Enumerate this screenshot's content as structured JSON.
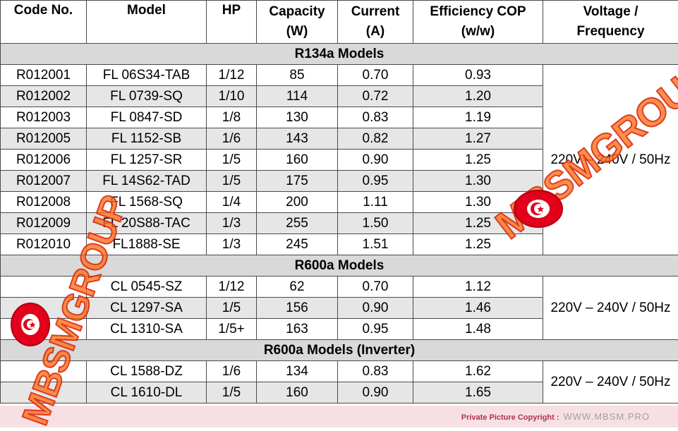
{
  "headers": {
    "code": "Code No.",
    "model": "Model",
    "hp": "HP",
    "capacity_l1": "Capacity",
    "capacity_l2": "(W)",
    "current_l1": "Current",
    "current_l2": "(A)",
    "cop_l1": "Efficiency COP",
    "cop_l2": "(w/w)",
    "voltage_l1": "Voltage /",
    "voltage_l2": "Frequency"
  },
  "sections": [
    {
      "title": "R134a Models",
      "voltage": "220V – 240V / 50Hz",
      "rows": [
        {
          "code": "R012001",
          "model": "FL 06S34-TAB",
          "hp": "1/12",
          "capacity": "85",
          "current": "0.70",
          "cop": "0.93"
        },
        {
          "code": "R012002",
          "model": "FL 0739-SQ",
          "hp": "1/10",
          "capacity": "114",
          "current": "0.72",
          "cop": "1.20"
        },
        {
          "code": "R012003",
          "model": "FL 0847-SD",
          "hp": "1/8",
          "capacity": "130",
          "current": "0.83",
          "cop": "1.19"
        },
        {
          "code": "R012005",
          "model": "FL 1152-SB",
          "hp": "1/6",
          "capacity": "143",
          "current": "0.82",
          "cop": "1.27"
        },
        {
          "code": "R012006",
          "model": "FL 1257-SR",
          "hp": "1/5",
          "capacity": "160",
          "current": "0.90",
          "cop": "1.25"
        },
        {
          "code": "R012007",
          "model": "FL 14S62-TAD",
          "hp": "1/5",
          "capacity": "175",
          "current": "0.95",
          "cop": "1.30"
        },
        {
          "code": "R012008",
          "model": "FL 1568-SQ",
          "hp": "1/4",
          "capacity": "200",
          "current": "1.11",
          "cop": "1.30"
        },
        {
          "code": "R012009",
          "model": "FL 20S88-TAC",
          "hp": "1/3",
          "capacity": "255",
          "current": "1.50",
          "cop": "1.25"
        },
        {
          "code": "R012010",
          "model": "FL1888-SE",
          "hp": "1/3",
          "capacity": "245",
          "current": "1.51",
          "cop": "1.25"
        }
      ]
    },
    {
      "title": "R600a Models",
      "voltage": "220V – 240V / 50Hz",
      "rows": [
        {
          "code": "",
          "model": "CL 0545-SZ",
          "hp": "1/12",
          "capacity": "62",
          "current": "0.70",
          "cop": "1.12"
        },
        {
          "code": "",
          "model": "CL 1297-SA",
          "hp": "1/5",
          "capacity": "156",
          "current": "0.90",
          "cop": "1.46"
        },
        {
          "code": "",
          "model": "CL 1310-SA",
          "hp": "1/5+",
          "capacity": "163",
          "current": "0.95",
          "cop": "1.48"
        }
      ]
    },
    {
      "title": "R600a Models (Inverter)",
      "voltage": "220V – 240V / 50Hz",
      "rows": [
        {
          "code": "",
          "model": "CL 1588-DZ",
          "hp": "1/6",
          "capacity": "134",
          "current": "0.83",
          "cop": "1.62"
        },
        {
          "code": "",
          "model": "CL 1610-DL",
          "hp": "1/5",
          "capacity": "160",
          "current": "0.90",
          "cop": "1.65"
        }
      ]
    }
  ],
  "footer": {
    "copyright_label": "Private Picture Copyright :",
    "site": "WWW.MBSM.PRO"
  },
  "watermark": {
    "text": "MBSMGROUP",
    "color": "#ff6e14",
    "flag_color": "#e2001a"
  }
}
